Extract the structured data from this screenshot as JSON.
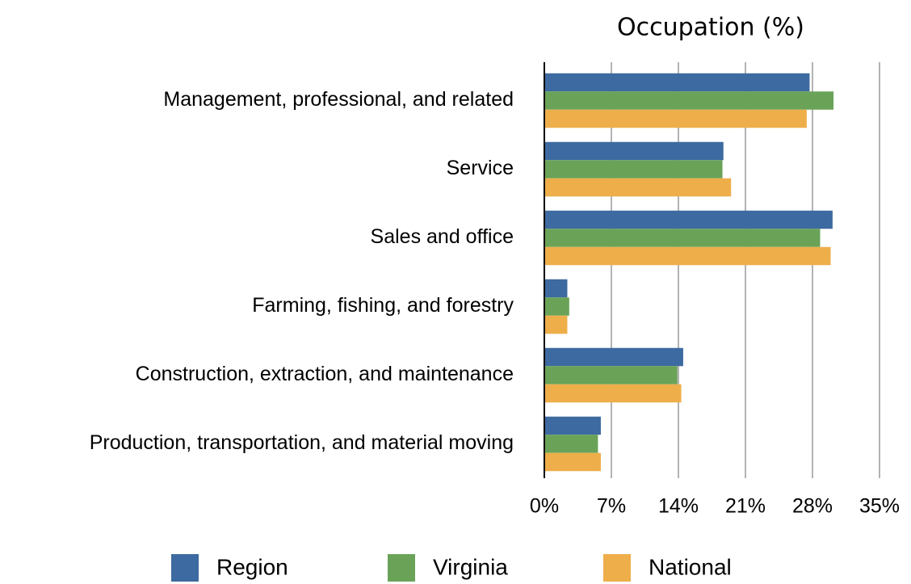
{
  "chart_data": {
    "type": "bar",
    "orientation": "horizontal",
    "title": "Occupation (%)",
    "categories": [
      "Management, professional, and related",
      "Service",
      "Sales and office",
      "Farming, fishing, and forestry",
      "Construction, extraction, and maintenance",
      "Production, transportation, and material moving"
    ],
    "series": [
      {
        "name": "Region",
        "color": "#3d6aa0",
        "values": [
          27.7,
          18.7,
          30.1,
          2.4,
          14.5,
          5.9
        ]
      },
      {
        "name": "Virginia",
        "color": "#6aa358",
        "values": [
          30.2,
          18.6,
          28.8,
          2.6,
          13.9,
          5.6
        ]
      },
      {
        "name": "National",
        "color": "#eeae4a",
        "values": [
          27.4,
          19.5,
          29.9,
          2.4,
          14.3,
          5.9
        ]
      }
    ],
    "xlim": [
      0,
      35
    ],
    "xticks": [
      {
        "value": 0,
        "label": "0%"
      },
      {
        "value": 7,
        "label": "7%"
      },
      {
        "value": 14,
        "label": "14%"
      },
      {
        "value": 21,
        "label": "21%"
      },
      {
        "value": 28,
        "label": "28%"
      },
      {
        "value": 35,
        "label": "35%"
      }
    ],
    "grid": true,
    "legend": "bottom"
  }
}
